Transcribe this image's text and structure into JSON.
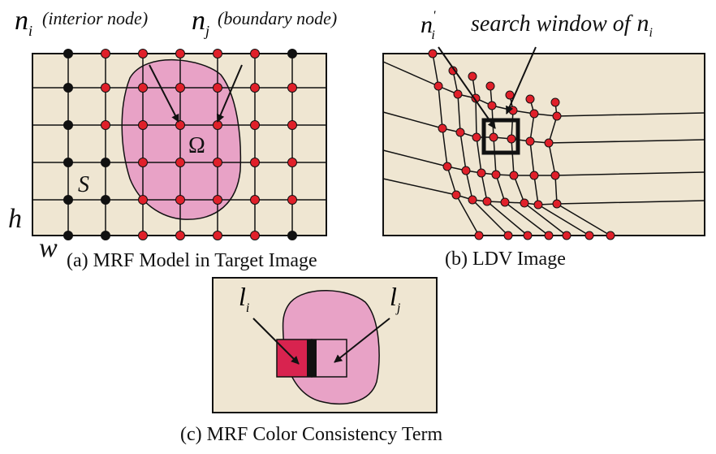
{
  "panel_a": {
    "label_ni_symbol": "n",
    "label_ni_sub": "i",
    "label_ni_desc": "(interior node)",
    "label_nj_symbol": "n",
    "label_nj_sub": "j",
    "label_nj_desc": "(boundary node)",
    "region_label": "Ω",
    "set_label": "S",
    "height_label": "h",
    "width_label": "w",
    "caption": "(a) MRF Model in Target Image"
  },
  "panel_b": {
    "label_ni_prime_symbol": "n",
    "label_ni_prime_sup": "'",
    "label_ni_prime_sub": "i",
    "search_label": "search window of",
    "search_symbol": "n",
    "search_sub": "i",
    "caption": "(b) LDV Image"
  },
  "panel_c": {
    "label_li_symbol": "l",
    "label_li_sub": "i",
    "label_lj_symbol": "l",
    "label_lj_sub": "j",
    "caption": "(c) MRF Color Consistency Term"
  },
  "colors": {
    "background": "#efe6d2",
    "region": "#e8a2c6",
    "node_red": "#e0202a",
    "node_black": "#111111",
    "patch": "#d8234f"
  }
}
